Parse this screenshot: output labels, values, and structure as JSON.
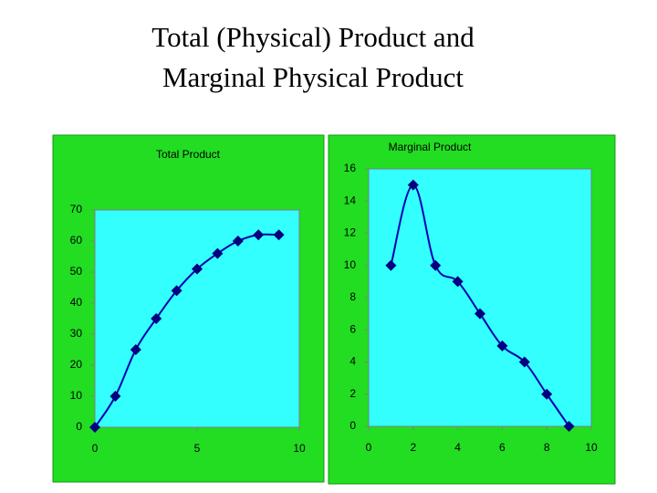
{
  "title": [
    "Total (Physical) Product and",
    "Marginal Physical Product"
  ],
  "chart_data": [
    {
      "type": "line",
      "title": "Total Product",
      "x": [
        0,
        1,
        2,
        3,
        4,
        5,
        6,
        7,
        8,
        9
      ],
      "values": [
        0,
        10,
        25,
        35,
        44,
        51,
        56,
        60,
        62,
        62
      ],
      "color": "#0000b0",
      "marker_color": "#000080",
      "xlim": [
        0,
        10
      ],
      "xticks": [
        0,
        5,
        10
      ],
      "ylim": [
        0,
        70
      ],
      "yticks": [
        0,
        10,
        20,
        30,
        40,
        50,
        60,
        70
      ],
      "grid": false
    },
    {
      "type": "line",
      "title": "Marginal Product",
      "x": [
        1,
        2,
        3,
        4,
        5,
        6,
        7,
        8,
        9
      ],
      "values": [
        10,
        15,
        10,
        9,
        7,
        5,
        4,
        2,
        0
      ],
      "color": "#0000b0",
      "marker_color": "#000080",
      "xlim": [
        0,
        10
      ],
      "xticks": [
        0,
        2,
        4,
        6,
        8,
        10
      ],
      "ylim": [
        0,
        16
      ],
      "yticks": [
        0,
        2,
        4,
        6,
        8,
        10,
        12,
        14,
        16
      ],
      "grid": false
    }
  ]
}
